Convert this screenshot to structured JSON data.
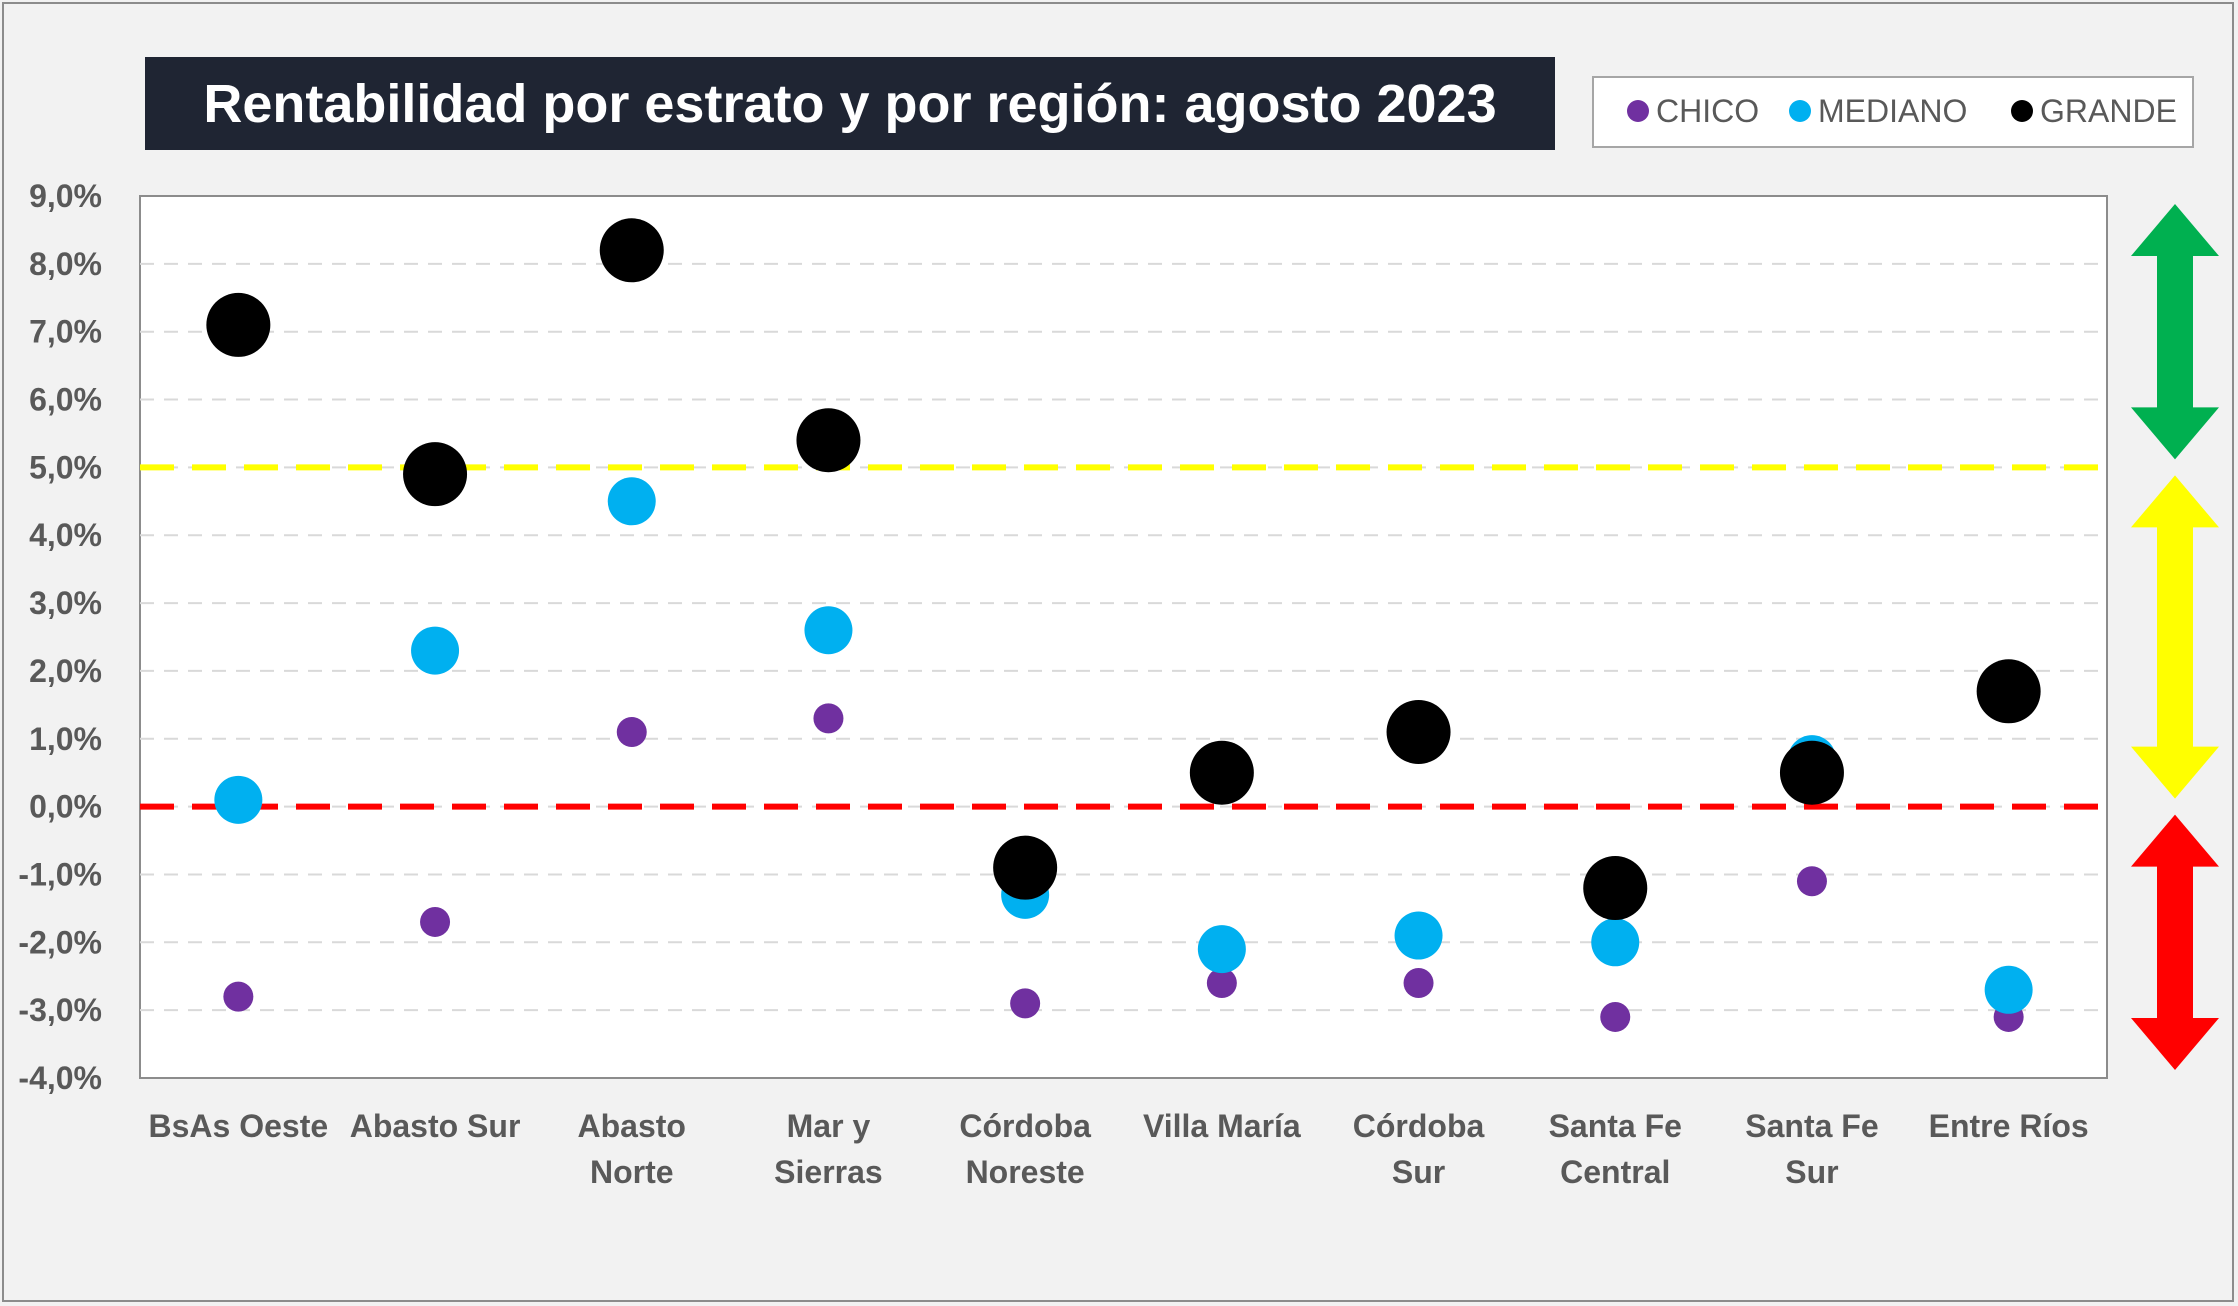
{
  "chart_data": {
    "type": "scatter",
    "title": "Rentabilidad por estrato y por región: agosto 2023",
    "categories": [
      [
        "BsAs Oeste"
      ],
      [
        "Abasto Sur"
      ],
      [
        "Abasto",
        "Norte"
      ],
      [
        "Mar y",
        "Sierras"
      ],
      [
        "Córdoba",
        "Noreste"
      ],
      [
        "Villa María"
      ],
      [
        "Córdoba",
        "Sur"
      ],
      [
        "Santa Fe",
        "Central"
      ],
      [
        "Santa Fe",
        "Sur"
      ],
      [
        "Entre Ríos"
      ]
    ],
    "series": [
      {
        "name": "CHICO",
        "color": "#7030a0",
        "values": [
          -2.8,
          -1.7,
          1.1,
          1.3,
          -2.9,
          -2.6,
          -2.6,
          -3.1,
          -1.1,
          -3.1
        ]
      },
      {
        "name": "MEDIANO",
        "color": "#00b0f0",
        "values": [
          0.1,
          2.3,
          4.5,
          2.6,
          -1.3,
          -2.1,
          -1.9,
          -2.0,
          0.7,
          -2.7
        ]
      },
      {
        "name": "GRANDE",
        "color": "#000000",
        "values": [
          7.1,
          4.9,
          8.2,
          5.4,
          -0.9,
          0.5,
          1.1,
          -1.2,
          0.5,
          1.7
        ]
      }
    ],
    "yticks": [
      "9,0%",
      "8,0%",
      "7,0%",
      "6,0%",
      "5,0%",
      "4,0%",
      "3,0%",
      "2,0%",
      "1,0%",
      "0,0%",
      "-1,0%",
      "-2,0%",
      "-3,0%",
      "-4,0%"
    ],
    "ylim": [
      -4,
      9
    ],
    "reference_lines": [
      {
        "value": 5.0,
        "color": "#ffff00"
      },
      {
        "value": 0.0,
        "color": "#ff0000"
      }
    ],
    "zone_arrows": [
      {
        "from": 5.0,
        "to": 9.0,
        "color": "#00b050"
      },
      {
        "from": 0.0,
        "to": 5.0,
        "color": "#ffff00"
      },
      {
        "from": -4.0,
        "to": 0.0,
        "color": "#ff0000"
      }
    ],
    "grid": true,
    "legend_position": "top-right"
  }
}
